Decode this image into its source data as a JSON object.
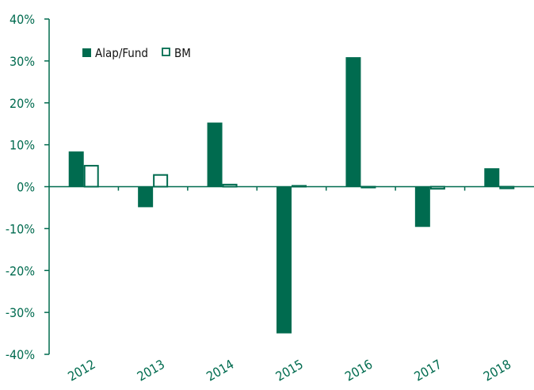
{
  "chart_data": {
    "type": "bar",
    "title": "",
    "xlabel": "",
    "ylabel": "",
    "categories": [
      "2012",
      "2013",
      "2014",
      "2015",
      "2016",
      "2017",
      "2018"
    ],
    "series": [
      {
        "name": "Alap/Fund",
        "style": "filled",
        "values": [
          8.4,
          -4.9,
          15.3,
          -35.0,
          30.9,
          -9.6,
          4.4
        ]
      },
      {
        "name": "BM",
        "style": "outline",
        "values": [
          5.0,
          2.8,
          0.5,
          0.2,
          -0.2,
          -0.5,
          -0.4
        ]
      }
    ],
    "ylim": [
      -40,
      40
    ],
    "yticks": [
      -40,
      -30,
      -20,
      -10,
      0,
      10,
      20,
      30,
      40
    ],
    "ytick_labels": [
      "-40%",
      "-30%",
      "-20%",
      "-10%",
      "0%",
      "10%",
      "20%",
      "30%",
      "40%"
    ],
    "legend_position": "top-left",
    "grid": false,
    "colors": {
      "accent": "#006b4f",
      "axis": "#006b4f",
      "tick_text": "#006b4f",
      "legend_text": "#111111",
      "background": "#ffffff"
    }
  }
}
